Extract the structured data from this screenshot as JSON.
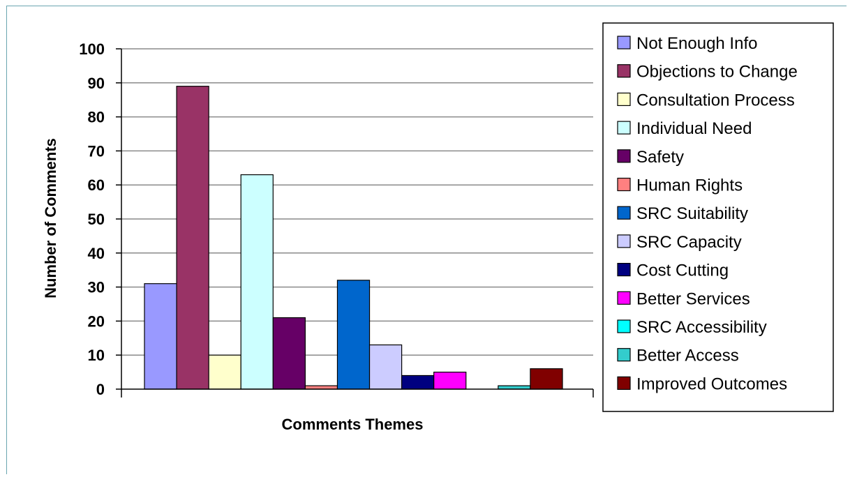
{
  "chart_data": {
    "type": "bar",
    "title": "",
    "xlabel": "Comments Themes",
    "ylabel": "Number of Comments",
    "ylim": [
      0,
      100
    ],
    "yticks": [
      0,
      10,
      20,
      30,
      40,
      50,
      60,
      70,
      80,
      90,
      100
    ],
    "grid": true,
    "legend_position": "right",
    "series": [
      {
        "name": "Not Enough Info",
        "value": 31,
        "color": "#9999ff"
      },
      {
        "name": "Objections to Change",
        "value": 89,
        "color": "#993366"
      },
      {
        "name": "Consultation Process",
        "value": 10,
        "color": "#ffffcc"
      },
      {
        "name": "Individual Need",
        "value": 63,
        "color": "#ccffff"
      },
      {
        "name": "Safety",
        "value": 21,
        "color": "#660066"
      },
      {
        "name": "Human Rights",
        "value": 1,
        "color": "#ff8080"
      },
      {
        "name": "SRC Suitability",
        "value": 32,
        "color": "#0066cc"
      },
      {
        "name": "SRC Capacity",
        "value": 13,
        "color": "#ccccff"
      },
      {
        "name": "Cost Cutting",
        "value": 4,
        "color": "#000080"
      },
      {
        "name": "Better Services",
        "value": 5,
        "color": "#ff00ff"
      },
      {
        "name": "SRC Accessibility",
        "value": 0,
        "color": "#00ffff"
      },
      {
        "name": "Better Access",
        "value": 1,
        "color": "#33cccc"
      },
      {
        "name": "Improved Outcomes",
        "value": 6,
        "color": "#800000"
      }
    ]
  }
}
